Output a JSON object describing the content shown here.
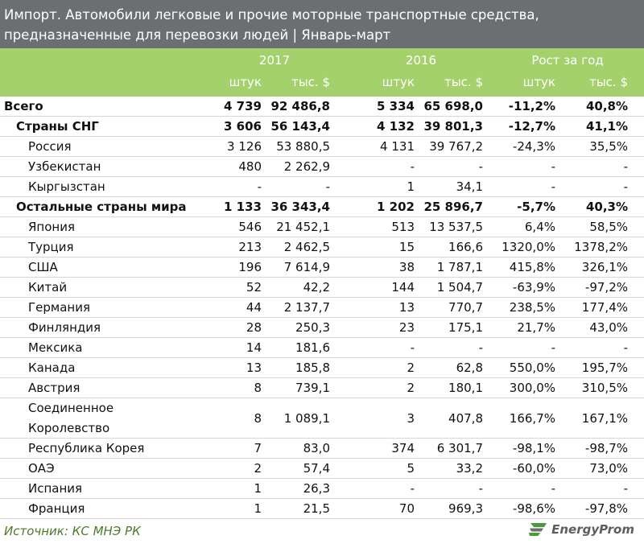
{
  "title": {
    "line1": "Импорт. Автомобили легковые и прочие моторные транспортные средства,",
    "line2": "предназначенные для перевозки людей | Январь-март"
  },
  "header": {
    "group_2017": "2017",
    "group_2016": "2016",
    "group_growth": "Рост за год",
    "sub_units": "штук",
    "sub_usd": "тыс. $"
  },
  "rows": [
    {
      "name": "Всего",
      "c1": "4 739",
      "c2": "92 486,8",
      "c3": "5 334",
      "c4": "65 698,0",
      "c5": "-11,2%",
      "c6": "40,8%",
      "level": 0
    },
    {
      "name": "Страны СНГ",
      "c1": "3 606",
      "c2": "56 143,4",
      "c3": "4 132",
      "c4": "39 801,3",
      "c5": "-12,7%",
      "c6": "41,1%",
      "level": 1
    },
    {
      "name": "Россия",
      "c1": "3 126",
      "c2": "53 880,5",
      "c3": "4 131",
      "c4": "39 767,2",
      "c5": "-24,3%",
      "c6": "35,5%",
      "level": 2
    },
    {
      "name": "Узбекистан",
      "c1": "480",
      "c2": "2 262,9",
      "c3": "-",
      "c4": "-",
      "c5": "-",
      "c6": "-",
      "level": 2
    },
    {
      "name": "Кыргызстан",
      "c1": "-",
      "c2": "-",
      "c3": "1",
      "c4": "34,1",
      "c5": "-",
      "c6": "-",
      "level": 2
    },
    {
      "name": "Остальные страны мира",
      "c1": "1 133",
      "c2": "36 343,4",
      "c3": "1 202",
      "c4": "25 896,7",
      "c5": "-5,7%",
      "c6": "40,3%",
      "level": 1
    },
    {
      "name": "Япония",
      "c1": "546",
      "c2": "21 452,1",
      "c3": "513",
      "c4": "13 537,5",
      "c5": "6,4%",
      "c6": "58,5%",
      "level": 2
    },
    {
      "name": "Турция",
      "c1": "213",
      "c2": "2 462,5",
      "c3": "15",
      "c4": "166,6",
      "c5": "1320,0%",
      "c6": "1378,2%",
      "level": 2
    },
    {
      "name": "США",
      "c1": "196",
      "c2": "7 614,9",
      "c3": "38",
      "c4": "1 787,1",
      "c5": "415,8%",
      "c6": "326,1%",
      "level": 2
    },
    {
      "name": "Китай",
      "c1": "52",
      "c2": "42,2",
      "c3": "144",
      "c4": "1 504,7",
      "c5": "-63,9%",
      "c6": "-97,2%",
      "level": 2
    },
    {
      "name": "Германия",
      "c1": "44",
      "c2": "2 137,7",
      "c3": "13",
      "c4": "770,7",
      "c5": "238,5%",
      "c6": "177,4%",
      "level": 2
    },
    {
      "name": "Финляндия",
      "c1": "28",
      "c2": "250,3",
      "c3": "23",
      "c4": "175,1",
      "c5": "21,7%",
      "c6": "43,0%",
      "level": 2
    },
    {
      "name": "Мексика",
      "c1": "14",
      "c2": "181,6",
      "c3": "-",
      "c4": "-",
      "c5": "-",
      "c6": "-",
      "level": 2
    },
    {
      "name": "Канада",
      "c1": "13",
      "c2": "185,8",
      "c3": "2",
      "c4": "62,8",
      "c5": "550,0%",
      "c6": "195,7%",
      "level": 2
    },
    {
      "name": "Австрия",
      "c1": "8",
      "c2": "739,1",
      "c3": "2",
      "c4": "180,1",
      "c5": "300,0%",
      "c6": "310,5%",
      "level": 2
    },
    {
      "name": "Соединенное Королевство",
      "c1": "8",
      "c2": "1 089,1",
      "c3": "3",
      "c4": "407,8",
      "c5": "166,7%",
      "c6": "167,1%",
      "level": 2,
      "tall": true
    },
    {
      "name": "Республика Корея",
      "c1": "7",
      "c2": "83,0",
      "c3": "374",
      "c4": "6 301,7",
      "c5": "-98,1%",
      "c6": "-98,7%",
      "level": 2
    },
    {
      "name": "ОАЭ",
      "c1": "2",
      "c2": "57,4",
      "c3": "5",
      "c4": "33,2",
      "c5": "-60,0%",
      "c6": "73,0%",
      "level": 2
    },
    {
      "name": "Испания",
      "c1": "1",
      "c2": "26,3",
      "c3": "-",
      "c4": "-",
      "c5": "-",
      "c6": "-",
      "level": 2
    },
    {
      "name": "Франция",
      "c1": "1",
      "c2": "21,5",
      "c3": "70",
      "c4": "969,3",
      "c5": "-98,6%",
      "c6": "-97,8%",
      "level": 2
    }
  ],
  "footer": {
    "source": "Источник: КС МНЭ РК",
    "logo_text": "EnergyProm"
  }
}
